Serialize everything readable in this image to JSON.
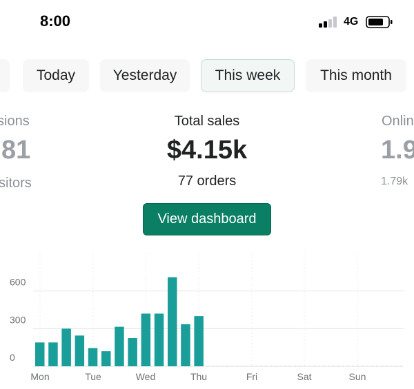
{
  "status_bar": {
    "time": "8:00",
    "network": "4G",
    "icons": [
      "signal-icon",
      "battery-icon"
    ]
  },
  "tabs": {
    "items": [
      {
        "label": "e",
        "active": false
      },
      {
        "label": "Today",
        "active": false
      },
      {
        "label": "Yesterday",
        "active": false
      },
      {
        "label": "This week",
        "active": true
      },
      {
        "label": "This month",
        "active": false
      }
    ]
  },
  "metrics": {
    "left": {
      "label": "sions",
      "value": "81",
      "sub": "sitors"
    },
    "center": {
      "label": "Total sales",
      "value": "$4.15k",
      "sub": "77 orders"
    },
    "right": {
      "label": "Onlin",
      "value": "1.9",
      "sub": "1.79k"
    }
  },
  "cta": {
    "label": "View dashboard"
  },
  "colors": {
    "accent": "#0a7f64",
    "bar": "#1a9e9a",
    "text": "#202223",
    "muted": "#8c9196",
    "grid": "#e1e3e5"
  },
  "chart_data": {
    "type": "bar",
    "title": "",
    "xlabel": "",
    "ylabel": "",
    "x_ticks": [
      "Mon",
      "Tue",
      "Wed",
      "Thu",
      "Fri",
      "Sat",
      "Sun"
    ],
    "y_ticks": [
      0,
      300,
      600
    ],
    "ylim": [
      0,
      900
    ],
    "series": [
      {
        "values": [
          190,
          190,
          300,
          245,
          145,
          120,
          315,
          225,
          420,
          420,
          710,
          335,
          400
        ]
      }
    ],
    "grid": true
  }
}
